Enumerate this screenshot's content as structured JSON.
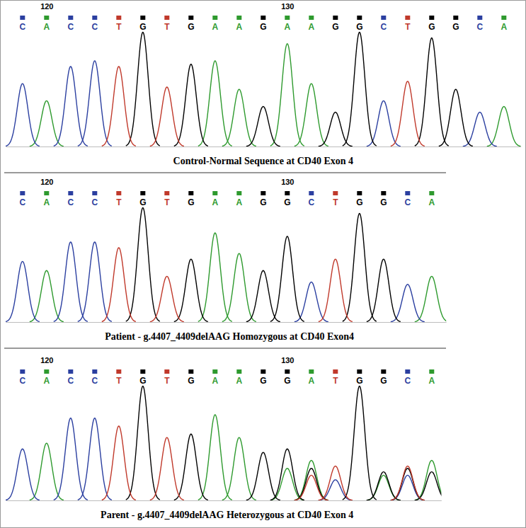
{
  "chart_data": [
    {
      "type": "chromatogram",
      "title": "Control-Normal Sequence at CD40 Exon 4",
      "x": [
        119,
        120,
        121,
        122,
        123,
        124,
        125,
        126,
        127,
        128,
        129,
        130,
        131,
        132,
        133,
        134,
        135,
        136,
        137,
        138,
        139
      ],
      "categories": [
        "C",
        "A",
        "C",
        "C",
        "T",
        "G",
        "T",
        "G",
        "A",
        "A",
        "G",
        "A",
        "A",
        "G",
        "G",
        "C",
        "T",
        "G",
        "G",
        "C",
        "A"
      ],
      "xlim": [
        118.3,
        139.7
      ],
      "xticks": [
        120,
        130
      ],
      "ylim": [
        0,
        100
      ],
      "tick_labels": "x",
      "series": [
        {
          "name": "A",
          "color": "#2e9a2e",
          "values": [
            null,
            40,
            null,
            null,
            null,
            null,
            null,
            null,
            75,
            50,
            null,
            90,
            55,
            null,
            null,
            null,
            null,
            null,
            null,
            null,
            35
          ]
        },
        {
          "name": "C",
          "color": "#2b3fa0",
          "values": [
            55,
            null,
            70,
            75,
            null,
            null,
            null,
            null,
            null,
            null,
            null,
            null,
            null,
            null,
            null,
            40,
            null,
            null,
            null,
            30,
            null
          ]
        },
        {
          "name": "G",
          "color": "#000000",
          "values": [
            null,
            null,
            null,
            null,
            null,
            100,
            null,
            72,
            null,
            null,
            35,
            null,
            null,
            30,
            100,
            null,
            null,
            95,
            50,
            null,
            null
          ]
        },
        {
          "name": "T",
          "color": "#c0392b",
          "values": [
            null,
            null,
            null,
            null,
            70,
            null,
            52,
            null,
            null,
            null,
            null,
            null,
            null,
            null,
            null,
            null,
            57,
            null,
            null,
            null,
            null
          ]
        }
      ]
    },
    {
      "type": "chromatogram",
      "title": "Patient - g.4407_4409delAAG Homozygous at CD40 Exon4",
      "x": [
        119,
        120,
        121,
        122,
        123,
        124,
        125,
        126,
        127,
        128,
        129,
        130,
        131,
        132,
        133,
        134,
        135,
        136
      ],
      "categories": [
        "C",
        "A",
        "C",
        "C",
        "T",
        "G",
        "T",
        "G",
        "A",
        "A",
        "G",
        "G",
        "C",
        "T",
        "G",
        "G",
        "C",
        "A"
      ],
      "xlim": [
        118.3,
        136.6
      ],
      "xticks": [
        120,
        130
      ],
      "ylim": [
        0,
        100
      ],
      "tick_labels": "x",
      "series": [
        {
          "name": "A",
          "color": "#2e9a2e",
          "values": [
            null,
            45,
            null,
            null,
            null,
            null,
            null,
            null,
            78,
            60,
            null,
            null,
            null,
            null,
            null,
            null,
            null,
            40
          ]
        },
        {
          "name": "C",
          "color": "#2b3fa0",
          "values": [
            53,
            null,
            70,
            70,
            null,
            null,
            null,
            null,
            null,
            null,
            null,
            null,
            35,
            null,
            null,
            null,
            33,
            null
          ]
        },
        {
          "name": "G",
          "color": "#000000",
          "values": [
            null,
            null,
            null,
            null,
            null,
            100,
            null,
            55,
            null,
            null,
            45,
            75,
            null,
            null,
            95,
            55,
            null,
            null
          ]
        },
        {
          "name": "T",
          "color": "#c0392b",
          "values": [
            null,
            null,
            null,
            null,
            65,
            null,
            40,
            null,
            null,
            null,
            null,
            null,
            null,
            55,
            null,
            null,
            null,
            null
          ]
        }
      ]
    },
    {
      "type": "chromatogram",
      "title": "Parent - g.4407_4409delAAG Heterozygous at CD40 Exon 4",
      "x": [
        119,
        120,
        121,
        122,
        123,
        124,
        125,
        126,
        127,
        128,
        129,
        130,
        131,
        132,
        133,
        134,
        135,
        136
      ],
      "categories": [
        "C",
        "A",
        "C",
        "C",
        "T",
        "G",
        "T",
        "G",
        "A",
        "A",
        "G",
        "G",
        "A",
        "T",
        "G",
        "G",
        "C",
        "A"
      ],
      "xlim": [
        118.3,
        136.4
      ],
      "xticks": [
        120,
        130
      ],
      "ylim": [
        0,
        100
      ],
      "tick_labels": "x",
      "series": [
        {
          "name": "A",
          "color": "#2e9a2e",
          "values": [
            null,
            50,
            null,
            null,
            null,
            null,
            null,
            null,
            75,
            55,
            null,
            28,
            35,
            null,
            null,
            22,
            null,
            35
          ]
        },
        {
          "name": "C",
          "color": "#2b3fa0",
          "values": [
            45,
            null,
            72,
            72,
            null,
            null,
            null,
            null,
            null,
            null,
            null,
            null,
            null,
            18,
            null,
            null,
            22,
            null
          ]
        },
        {
          "name": "G",
          "color": "#000000",
          "values": [
            null,
            null,
            null,
            null,
            null,
            100,
            null,
            58,
            null,
            null,
            42,
            45,
            28,
            null,
            100,
            25,
            28,
            25
          ]
        },
        {
          "name": "T",
          "color": "#c0392b",
          "values": [
            null,
            null,
            null,
            null,
            65,
            null,
            55,
            null,
            null,
            null,
            null,
            null,
            22,
            30,
            null,
            null,
            30,
            null
          ]
        }
      ]
    }
  ]
}
